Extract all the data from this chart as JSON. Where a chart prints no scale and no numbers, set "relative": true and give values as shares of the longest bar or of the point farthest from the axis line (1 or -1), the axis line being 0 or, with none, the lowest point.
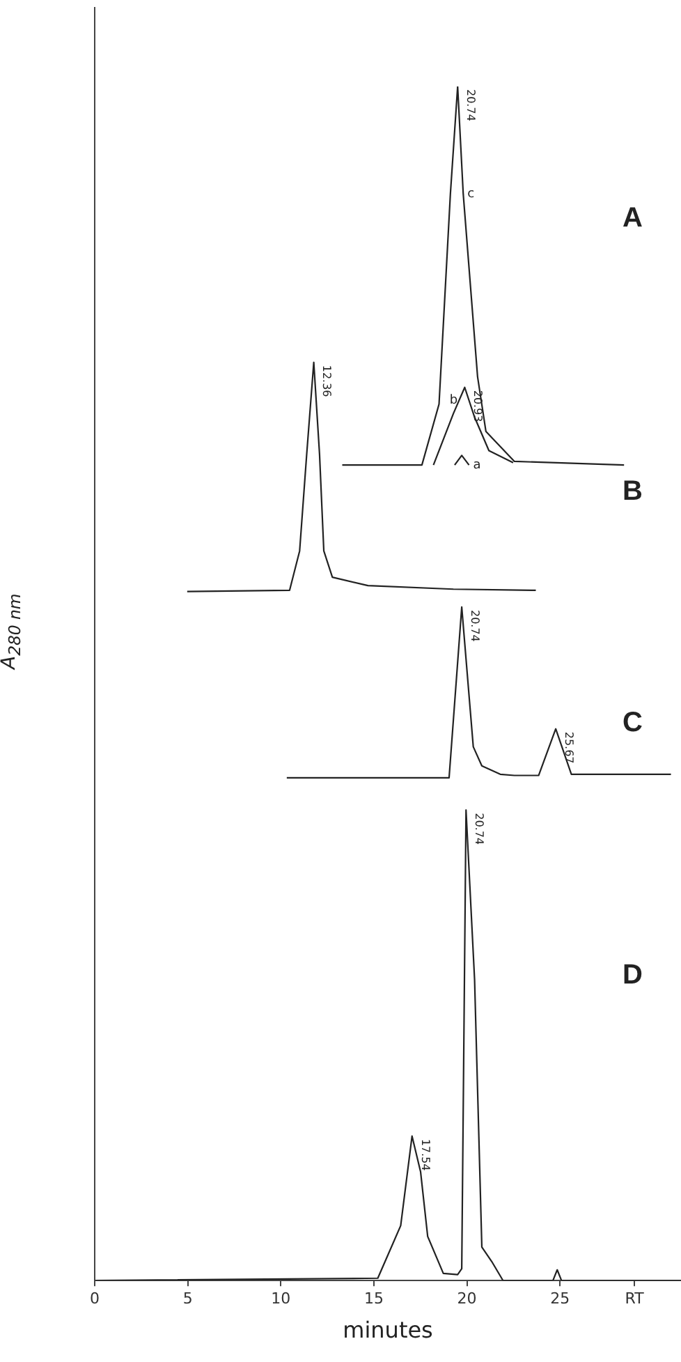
{
  "chart_data": {
    "type": "line",
    "relative": true,
    "xlabel": "minutes",
    "ylabel": "A$_{280 nm}$",
    "xlim": [
      0,
      31.5
    ],
    "xticks": [
      0,
      5,
      10,
      15,
      20,
      25,
      {
        "value": 29,
        "label": "RT"
      }
    ],
    "grid": false,
    "legend": false,
    "marker": "none",
    "line_style": "solid",
    "series": [
      {
        "name": "c",
        "color": "#222222",
        "x": [
          13.3,
          17.58,
          18.5,
          19.11,
          19.5,
          19.8,
          20.57,
          21.02,
          22.55,
          28.44
        ],
        "values": [
          0.683,
          0.683,
          0.734,
          0.91,
          1.0,
          0.91,
          0.757,
          0.711,
          0.686,
          0.683
        ]
      },
      {
        "name": "b",
        "color": "#222222",
        "x": [
          18.2,
          19.27,
          19.88,
          20.41,
          21.18,
          22.48
        ],
        "values": [
          0.683,
          0.726,
          0.748,
          0.723,
          0.695,
          0.685
        ]
      },
      {
        "name": "a",
        "color": "#222222",
        "x": [
          19.34,
          19.72,
          20.11
        ],
        "values": [
          0.683,
          0.691,
          0.683
        ]
      },
      {
        "color": "#222222",
        "x": [
          4.97,
          10.47,
          11.01,
          11.39,
          11.77,
          12.08,
          12.31,
          12.77,
          14.68,
          19.27,
          23.7
        ],
        "values": [
          0.577,
          0.578,
          0.611,
          0.692,
          0.769,
          0.692,
          0.611,
          0.589,
          0.582,
          0.579,
          0.578
        ]
      },
      {
        "color": "#222222",
        "x": [
          10.32,
          19.04,
          19.72,
          20.34,
          20.8,
          21.79,
          22.55,
          23.85,
          24.77,
          25.61,
          30.96
        ],
        "values": [
          0.421,
          0.421,
          0.564,
          0.447,
          0.431,
          0.424,
          0.423,
          0.423,
          0.462,
          0.424,
          0.424
        ]
      },
      {
        "color": "#222222",
        "x": [
          0,
          15.21,
          16.44,
          17.05,
          17.51,
          17.89,
          18.73,
          19.5,
          19.72,
          19.95,
          20.41,
          20.8,
          21.33,
          21.94,
          24.62,
          24.85,
          25.08,
          31.5
        ],
        "values": [
          0,
          0.002,
          0.046,
          0.121,
          0.091,
          0.037,
          0.006,
          0.005,
          0.01,
          0.394,
          0.252,
          0.028,
          0.016,
          0,
          0,
          0.009,
          0,
          0
        ]
      }
    ],
    "annotations": [
      {
        "text": "20.74",
        "x": 19.5,
        "y": 1.0
      },
      {
        "text": "20.93",
        "x": 19.88,
        "y": 0.748
      },
      {
        "text": "12.36",
        "x": 11.77,
        "y": 0.769
      },
      {
        "text": "20.74",
        "x": 19.72,
        "y": 0.564
      },
      {
        "text": "25.67",
        "x": 24.77,
        "y": 0.462
      },
      {
        "text": "17.54",
        "x": 17.05,
        "y": 0.121
      },
      {
        "text": "20.74",
        "x": 19.95,
        "y": 0.394
      },
      "A",
      "B",
      "C",
      "D"
    ]
  }
}
